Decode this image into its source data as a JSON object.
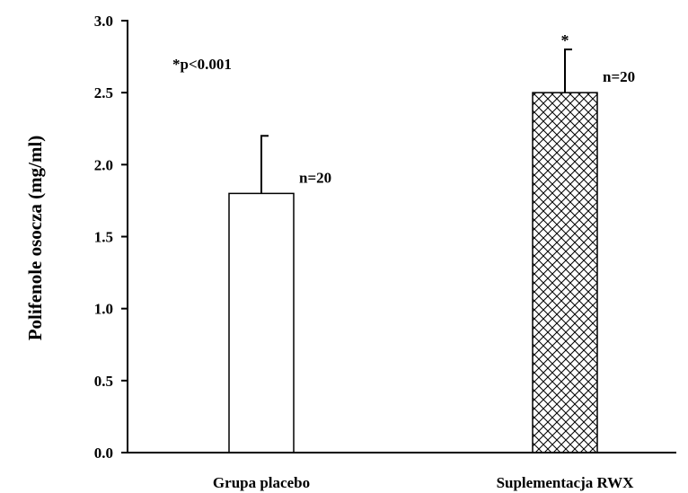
{
  "chart_data": {
    "type": "bar",
    "title": "",
    "xlabel": "",
    "ylabel": "Polifenole osocza (mg/ml)",
    "ylim": [
      0,
      3.0
    ],
    "yticks": [
      0.0,
      0.5,
      1.0,
      1.5,
      2.0,
      2.5,
      3.0
    ],
    "ytick_labels": [
      "0.0",
      "0.5",
      "1.0",
      "1.5",
      "2.0",
      "2.5",
      "3.0"
    ],
    "categories": [
      "Grupa placebo",
      "Suplementacja RWX"
    ],
    "values": [
      1.8,
      2.5
    ],
    "error_upper": [
      0.4,
      0.3
    ],
    "n_labels": [
      "n=20",
      "n=20"
    ],
    "significance_markers": [
      "",
      "*"
    ],
    "bar_fills": [
      "plain",
      "crosshatch"
    ],
    "annotation": "*p<0.001",
    "grid": false,
    "legend": "none",
    "colors": {
      "bar_outline": "#000000",
      "bar_fill": "#ffffff",
      "axis": "#000000"
    }
  }
}
